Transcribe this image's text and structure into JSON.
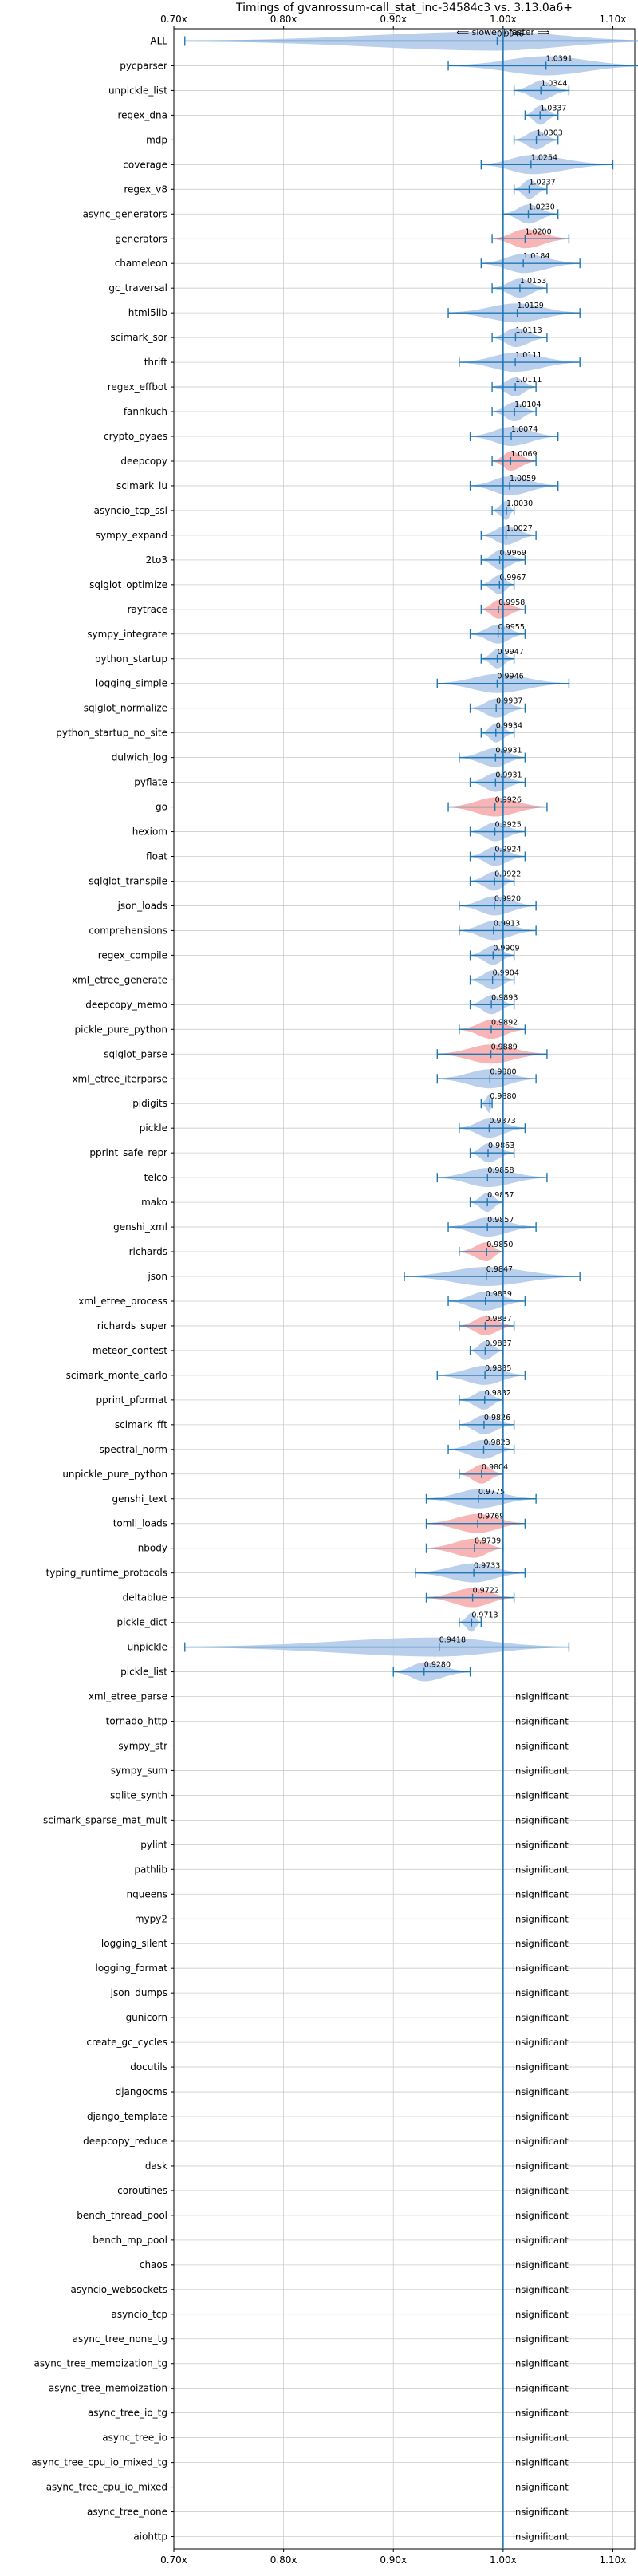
{
  "chart_data": {
    "type": "violin",
    "title": "Timings of gvanrossum-call_stat_inc-34584c3 vs. 3.13.0a6+",
    "direction_hint": "⟸ slower | faster ⟹",
    "xlim": [
      0.7,
      1.12
    ],
    "x_ticks": [
      {
        "value": 0.7,
        "label": "0.70x"
      },
      {
        "value": 0.8,
        "label": "0.80x"
      },
      {
        "value": 0.9,
        "label": "0.90x"
      },
      {
        "value": 1.0,
        "label": "1.00x"
      },
      {
        "value": 1.1,
        "label": "1.10x"
      }
    ],
    "reference_line": 1.0,
    "grid": true,
    "colors": {
      "faster": "#aec7e8",
      "slower": "#f7a8a8",
      "errorbar": "#1f77b4",
      "refline": "#1f77b4",
      "grid": "#cccccc"
    },
    "insignificant_label": "insignificant",
    "rows": [
      {
        "name": "ALL",
        "value": 0.9946,
        "lo": 0.71,
        "hi": 1.14,
        "status": "faster"
      },
      {
        "name": "pycparser",
        "value": 1.0391,
        "lo": 0.95,
        "hi": 1.13,
        "status": "faster"
      },
      {
        "name": "unpickle_list",
        "value": 1.0344,
        "lo": 1.01,
        "hi": 1.06,
        "status": "faster"
      },
      {
        "name": "regex_dna",
        "value": 1.0337,
        "lo": 1.02,
        "hi": 1.05,
        "status": "faster"
      },
      {
        "name": "mdp",
        "value": 1.0303,
        "lo": 1.01,
        "hi": 1.05,
        "status": "faster"
      },
      {
        "name": "coverage",
        "value": 1.0254,
        "lo": 0.98,
        "hi": 1.1,
        "status": "faster"
      },
      {
        "name": "regex_v8",
        "value": 1.0237,
        "lo": 1.01,
        "hi": 1.04,
        "status": "faster"
      },
      {
        "name": "async_generators",
        "value": 1.023,
        "lo": 1.0,
        "hi": 1.05,
        "status": "faster"
      },
      {
        "name": "generators",
        "value": 1.02,
        "lo": 0.99,
        "hi": 1.06,
        "status": "slower"
      },
      {
        "name": "chameleon",
        "value": 1.0184,
        "lo": 0.98,
        "hi": 1.07,
        "status": "faster"
      },
      {
        "name": "gc_traversal",
        "value": 1.0153,
        "lo": 0.99,
        "hi": 1.04,
        "status": "faster"
      },
      {
        "name": "html5lib",
        "value": 1.0129,
        "lo": 0.95,
        "hi": 1.07,
        "status": "faster"
      },
      {
        "name": "scimark_sor",
        "value": 1.0113,
        "lo": 0.99,
        "hi": 1.04,
        "status": "faster"
      },
      {
        "name": "thrift",
        "value": 1.0111,
        "lo": 0.96,
        "hi": 1.07,
        "status": "faster"
      },
      {
        "name": "regex_effbot",
        "value": 1.0111,
        "lo": 0.99,
        "hi": 1.03,
        "status": "faster"
      },
      {
        "name": "fannkuch",
        "value": 1.0104,
        "lo": 0.99,
        "hi": 1.03,
        "status": "faster"
      },
      {
        "name": "crypto_pyaes",
        "value": 1.0074,
        "lo": 0.97,
        "hi": 1.05,
        "status": "faster"
      },
      {
        "name": "deepcopy",
        "value": 1.0069,
        "lo": 0.99,
        "hi": 1.03,
        "status": "slower"
      },
      {
        "name": "scimark_lu",
        "value": 1.0059,
        "lo": 0.97,
        "hi": 1.05,
        "status": "faster"
      },
      {
        "name": "asyncio_tcp_ssl",
        "value": 1.003,
        "lo": 0.99,
        "hi": 1.01,
        "status": "faster"
      },
      {
        "name": "sympy_expand",
        "value": 1.0027,
        "lo": 0.98,
        "hi": 1.03,
        "status": "faster"
      },
      {
        "name": "2to3",
        "value": 0.9969,
        "lo": 0.98,
        "hi": 1.02,
        "status": "faster"
      },
      {
        "name": "sqlglot_optimize",
        "value": 0.9967,
        "lo": 0.98,
        "hi": 1.01,
        "status": "faster"
      },
      {
        "name": "raytrace",
        "value": 0.9958,
        "lo": 0.98,
        "hi": 1.02,
        "status": "slower"
      },
      {
        "name": "sympy_integrate",
        "value": 0.9955,
        "lo": 0.97,
        "hi": 1.02,
        "status": "faster"
      },
      {
        "name": "python_startup",
        "value": 0.9947,
        "lo": 0.98,
        "hi": 1.01,
        "status": "faster"
      },
      {
        "name": "logging_simple",
        "value": 0.9946,
        "lo": 0.94,
        "hi": 1.06,
        "status": "faster"
      },
      {
        "name": "sqlglot_normalize",
        "value": 0.9937,
        "lo": 0.97,
        "hi": 1.02,
        "status": "faster"
      },
      {
        "name": "python_startup_no_site",
        "value": 0.9934,
        "lo": 0.98,
        "hi": 1.01,
        "status": "faster"
      },
      {
        "name": "dulwich_log",
        "value": 0.9931,
        "lo": 0.96,
        "hi": 1.02,
        "status": "faster"
      },
      {
        "name": "pyflate",
        "value": 0.9931,
        "lo": 0.97,
        "hi": 1.02,
        "status": "faster"
      },
      {
        "name": "go",
        "value": 0.9926,
        "lo": 0.95,
        "hi": 1.04,
        "status": "slower"
      },
      {
        "name": "hexiom",
        "value": 0.9925,
        "lo": 0.97,
        "hi": 1.02,
        "status": "faster"
      },
      {
        "name": "float",
        "value": 0.9924,
        "lo": 0.97,
        "hi": 1.02,
        "status": "faster"
      },
      {
        "name": "sqlglot_transpile",
        "value": 0.9922,
        "lo": 0.97,
        "hi": 1.01,
        "status": "faster"
      },
      {
        "name": "json_loads",
        "value": 0.992,
        "lo": 0.96,
        "hi": 1.03,
        "status": "faster"
      },
      {
        "name": "comprehensions",
        "value": 0.9913,
        "lo": 0.96,
        "hi": 1.03,
        "status": "faster"
      },
      {
        "name": "regex_compile",
        "value": 0.9909,
        "lo": 0.97,
        "hi": 1.01,
        "status": "faster"
      },
      {
        "name": "xml_etree_generate",
        "value": 0.9904,
        "lo": 0.97,
        "hi": 1.01,
        "status": "faster"
      },
      {
        "name": "deepcopy_memo",
        "value": 0.9893,
        "lo": 0.97,
        "hi": 1.01,
        "status": "faster"
      },
      {
        "name": "pickle_pure_python",
        "value": 0.9892,
        "lo": 0.96,
        "hi": 1.02,
        "status": "slower"
      },
      {
        "name": "sqlglot_parse",
        "value": 0.9889,
        "lo": 0.94,
        "hi": 1.04,
        "status": "slower"
      },
      {
        "name": "xml_etree_iterparse",
        "value": 0.988,
        "lo": 0.94,
        "hi": 1.03,
        "status": "faster"
      },
      {
        "name": "pidigits",
        "value": 0.988,
        "lo": 0.98,
        "hi": 0.99,
        "status": "faster"
      },
      {
        "name": "pickle",
        "value": 0.9873,
        "lo": 0.96,
        "hi": 1.02,
        "status": "faster"
      },
      {
        "name": "pprint_safe_repr",
        "value": 0.9863,
        "lo": 0.97,
        "hi": 1.01,
        "status": "faster"
      },
      {
        "name": "telco",
        "value": 0.9858,
        "lo": 0.94,
        "hi": 1.04,
        "status": "faster"
      },
      {
        "name": "mako",
        "value": 0.9857,
        "lo": 0.97,
        "hi": 1.0,
        "status": "faster"
      },
      {
        "name": "genshi_xml",
        "value": 0.9857,
        "lo": 0.95,
        "hi": 1.03,
        "status": "faster"
      },
      {
        "name": "richards",
        "value": 0.985,
        "lo": 0.96,
        "hi": 1.0,
        "status": "slower"
      },
      {
        "name": "json",
        "value": 0.9847,
        "lo": 0.91,
        "hi": 1.07,
        "status": "faster"
      },
      {
        "name": "xml_etree_process",
        "value": 0.9839,
        "lo": 0.95,
        "hi": 1.02,
        "status": "faster"
      },
      {
        "name": "richards_super",
        "value": 0.9837,
        "lo": 0.96,
        "hi": 1.01,
        "status": "slower"
      },
      {
        "name": "meteor_contest",
        "value": 0.9837,
        "lo": 0.97,
        "hi": 1.0,
        "status": "faster"
      },
      {
        "name": "scimark_monte_carlo",
        "value": 0.9835,
        "lo": 0.94,
        "hi": 1.02,
        "status": "faster"
      },
      {
        "name": "pprint_pformat",
        "value": 0.9832,
        "lo": 0.96,
        "hi": 1.0,
        "status": "faster"
      },
      {
        "name": "scimark_fft",
        "value": 0.9826,
        "lo": 0.96,
        "hi": 1.01,
        "status": "faster"
      },
      {
        "name": "spectral_norm",
        "value": 0.9823,
        "lo": 0.95,
        "hi": 1.01,
        "status": "faster"
      },
      {
        "name": "unpickle_pure_python",
        "value": 0.9804,
        "lo": 0.96,
        "hi": 1.0,
        "status": "slower"
      },
      {
        "name": "genshi_text",
        "value": 0.9775,
        "lo": 0.93,
        "hi": 1.03,
        "status": "faster"
      },
      {
        "name": "tomli_loads",
        "value": 0.9769,
        "lo": 0.93,
        "hi": 1.02,
        "status": "slower"
      },
      {
        "name": "nbody",
        "value": 0.9739,
        "lo": 0.93,
        "hi": 1.0,
        "status": "slower"
      },
      {
        "name": "typing_runtime_protocols",
        "value": 0.9733,
        "lo": 0.92,
        "hi": 1.02,
        "status": "faster"
      },
      {
        "name": "deltablue",
        "value": 0.9722,
        "lo": 0.93,
        "hi": 1.01,
        "status": "slower"
      },
      {
        "name": "pickle_dict",
        "value": 0.9713,
        "lo": 0.96,
        "hi": 0.98,
        "status": "faster"
      },
      {
        "name": "unpickle",
        "value": 0.9418,
        "lo": 0.71,
        "hi": 1.06,
        "status": "faster"
      },
      {
        "name": "pickle_list",
        "value": 0.928,
        "lo": 0.9,
        "hi": 0.97,
        "status": "faster"
      },
      {
        "name": "xml_etree_parse",
        "status": "insignificant"
      },
      {
        "name": "tornado_http",
        "status": "insignificant"
      },
      {
        "name": "sympy_str",
        "status": "insignificant"
      },
      {
        "name": "sympy_sum",
        "status": "insignificant"
      },
      {
        "name": "sqlite_synth",
        "status": "insignificant"
      },
      {
        "name": "scimark_sparse_mat_mult",
        "status": "insignificant"
      },
      {
        "name": "pylint",
        "status": "insignificant"
      },
      {
        "name": "pathlib",
        "status": "insignificant"
      },
      {
        "name": "nqueens",
        "status": "insignificant"
      },
      {
        "name": "mypy2",
        "status": "insignificant"
      },
      {
        "name": "logging_silent",
        "status": "insignificant"
      },
      {
        "name": "logging_format",
        "status": "insignificant"
      },
      {
        "name": "json_dumps",
        "status": "insignificant"
      },
      {
        "name": "gunicorn",
        "status": "insignificant"
      },
      {
        "name": "create_gc_cycles",
        "status": "insignificant"
      },
      {
        "name": "docutils",
        "status": "insignificant"
      },
      {
        "name": "djangocms",
        "status": "insignificant"
      },
      {
        "name": "django_template",
        "status": "insignificant"
      },
      {
        "name": "deepcopy_reduce",
        "status": "insignificant"
      },
      {
        "name": "dask",
        "status": "insignificant"
      },
      {
        "name": "coroutines",
        "status": "insignificant"
      },
      {
        "name": "bench_thread_pool",
        "status": "insignificant"
      },
      {
        "name": "bench_mp_pool",
        "status": "insignificant"
      },
      {
        "name": "chaos",
        "status": "insignificant"
      },
      {
        "name": "asyncio_websockets",
        "status": "insignificant"
      },
      {
        "name": "asyncio_tcp",
        "status": "insignificant"
      },
      {
        "name": "async_tree_none_tg",
        "status": "insignificant"
      },
      {
        "name": "async_tree_memoization_tg",
        "status": "insignificant"
      },
      {
        "name": "async_tree_memoization",
        "status": "insignificant"
      },
      {
        "name": "async_tree_io_tg",
        "status": "insignificant"
      },
      {
        "name": "async_tree_io",
        "status": "insignificant"
      },
      {
        "name": "async_tree_cpu_io_mixed_tg",
        "status": "insignificant"
      },
      {
        "name": "async_tree_cpu_io_mixed",
        "status": "insignificant"
      },
      {
        "name": "async_tree_none",
        "status": "insignificant"
      },
      {
        "name": "aiohttp",
        "status": "insignificant"
      }
    ]
  }
}
